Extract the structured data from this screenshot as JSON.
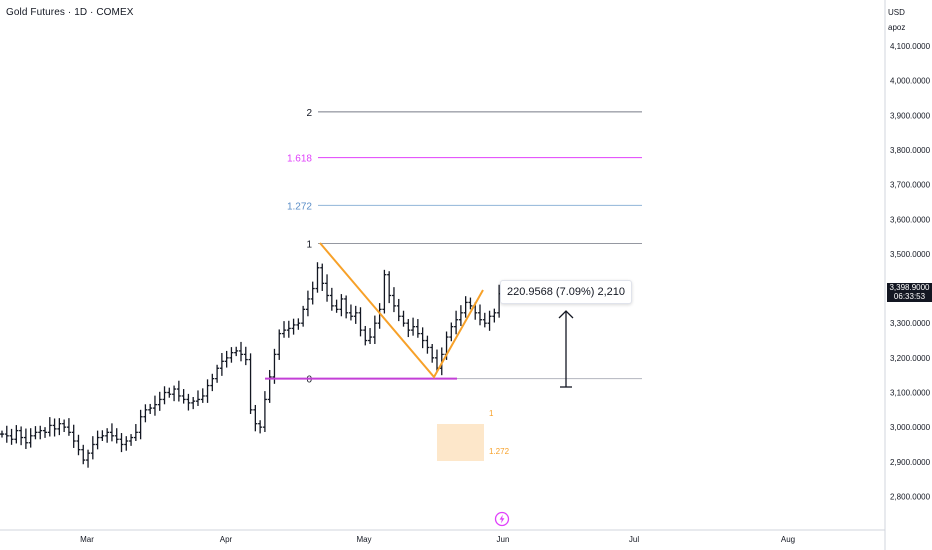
{
  "header": {
    "title": "Gold Futures · 1D · COMEX"
  },
  "price_scale": {
    "currency": "USD",
    "mode": "apoz",
    "last_price": "3,398.9000",
    "countdown": "06:33:53",
    "last_price_bg": "#131722"
  },
  "measure": {
    "label": "220.9568 (7.09%) 2,210"
  },
  "colors": {
    "fib_2": "#787b86",
    "fib_1618": "#e040fb",
    "fib_1272": "#90b4d8",
    "fib_1": "#9598a1",
    "fib_0": "#b2b5be",
    "support_line": "#c33fd6",
    "pattern_line": "#f7a129",
    "zone_fill": "#fde7ca",
    "zone_text": "#f7a129",
    "bars": "#131722",
    "logo": "#e040fb"
  },
  "chart_data": {
    "type": "ohlc",
    "title": "Gold Futures · 1D · COMEX",
    "xlabel": "",
    "ylabel": "",
    "grid": false,
    "ylim": [
      2720,
      4160
    ],
    "y_ticks": [
      "4,100.0000",
      "4,000.0000",
      "3,900.0000",
      "3,800.0000",
      "3,700.0000",
      "3,600.0000",
      "3,500.0000",
      "3,400.0000",
      "3,300.0000",
      "3,200.0000",
      "3,100.0000",
      "3,000.0000",
      "2,900.0000",
      "2,800.0000"
    ],
    "y_tick_values": [
      4100,
      4000,
      3900,
      3800,
      3700,
      3600,
      3500,
      3400,
      3300,
      3200,
      3100,
      3000,
      2900,
      2800
    ],
    "x_ticks": [
      "Mar",
      "Apr",
      "May",
      "Jun",
      "Jul",
      "Aug"
    ],
    "fib_levels": [
      {
        "label": "2",
        "value": 3910
      },
      {
        "label": "1.618",
        "value": 3778
      },
      {
        "label": "1.272",
        "value": 3640
      },
      {
        "label": "1",
        "value": 3530
      },
      {
        "label": "0",
        "value": 3140
      }
    ],
    "zone_labels": [
      "1",
      "1.272"
    ],
    "bars_close": [
      2980,
      2975,
      2965,
      2990,
      2970,
      2955,
      2975,
      2985,
      2990,
      2985,
      3005,
      2995,
      3010,
      3000,
      2985,
      2960,
      2935,
      2905,
      2925,
      2950,
      2970,
      2975,
      2985,
      2975,
      2965,
      2950,
      2960,
      2970,
      2985,
      3030,
      3050,
      3055,
      3065,
      3080,
      3100,
      3095,
      3110,
      3090,
      3080,
      3070,
      3075,
      3080,
      3090,
      3120,
      3140,
      3170,
      3190,
      3200,
      3215,
      3220,
      3210,
      3195,
      3050,
      3010,
      3000,
      3080,
      3145,
      3210,
      3270,
      3280,
      3285,
      3295,
      3300,
      3340,
      3370,
      3400,
      3460,
      3415,
      3380,
      3350,
      3340,
      3370,
      3330,
      3320,
      3330,
      3280,
      3250,
      3260,
      3300,
      3340,
      3440,
      3380,
      3350,
      3320,
      3300,
      3280,
      3290,
      3270,
      3250,
      3230,
      3200,
      3170,
      3210,
      3260,
      3290,
      3310,
      3330,
      3360,
      3350,
      3330,
      3310,
      3300,
      3320,
      3330,
      3385
    ]
  }
}
